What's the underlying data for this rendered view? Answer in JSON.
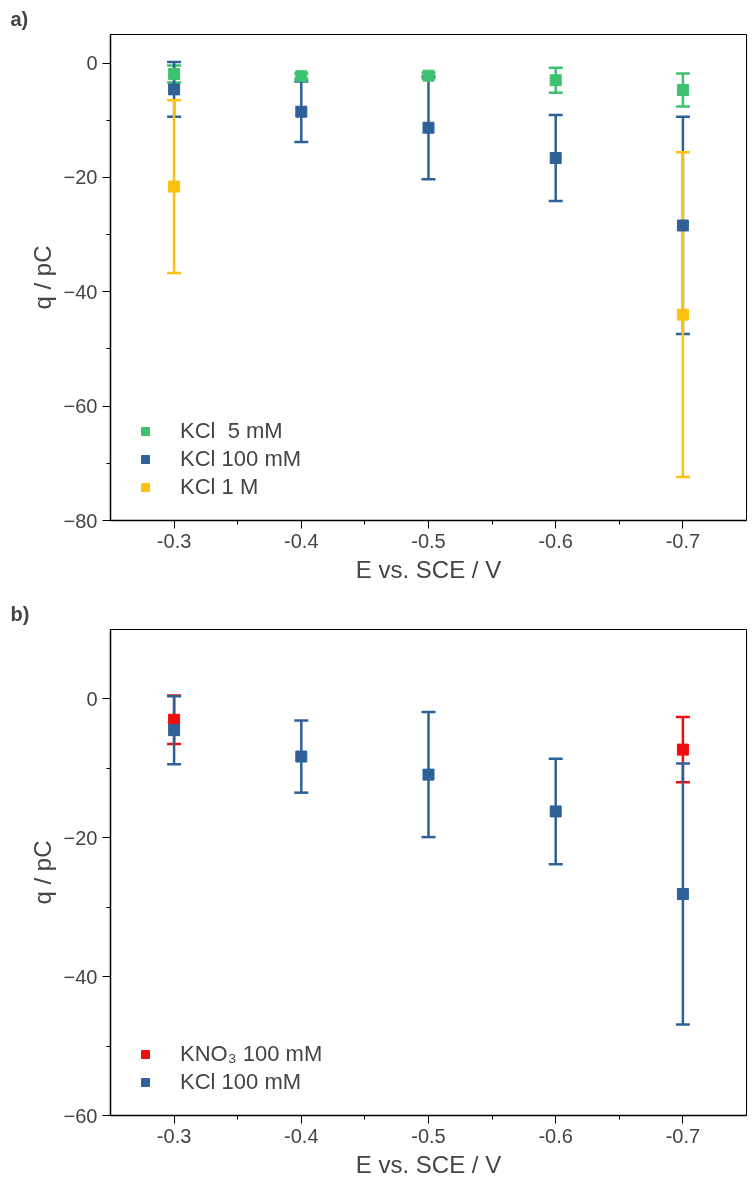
{
  "chart_data": [
    {
      "type": "scatter",
      "title": "a)",
      "xlabel": "E vs. SCE / V",
      "ylabel": "q / pC",
      "x": [
        -0.3,
        -0.4,
        -0.5,
        -0.6,
        -0.7
      ],
      "xlim": [
        -0.25,
        -0.75
      ],
      "xticks": [
        -0.3,
        -0.4,
        -0.5,
        -0.6,
        -0.7
      ],
      "ylim": [
        -80,
        5
      ],
      "yticks": [
        -80,
        -60,
        -40,
        -20,
        0
      ],
      "marker": "square",
      "legend": "bottom left",
      "grid": false,
      "series": [
        {
          "name": "KCl  5 mM",
          "color": "#3cc26e",
          "values": [
            -1.9,
            -2.3,
            -2.2,
            -3.0,
            -4.7
          ],
          "errors": [
            1.5,
            0.5,
            0.5,
            2.2,
            2.9
          ]
        },
        {
          "name": "KCl 100 mM",
          "color": "#2f6199",
          "values": [
            -4.6,
            -8.5,
            -11.3,
            -16.6,
            -28.4
          ],
          "errors": [
            4.8,
            5.3,
            9,
            7.5,
            19
          ]
        },
        {
          "name": "KCl 1 M",
          "color": "#fcc10f",
          "values": [
            -21.6,
            null,
            null,
            null,
            -44.0
          ],
          "errors": [
            15.1,
            null,
            null,
            null,
            28.4
          ]
        }
      ]
    },
    {
      "type": "scatter",
      "title": "b)",
      "xlabel": "E vs. SCE / V",
      "ylabel": "q / pC",
      "x": [
        -0.3,
        -0.4,
        -0.5,
        -0.6,
        -0.7
      ],
      "xlim": [
        -0.25,
        -0.75
      ],
      "xticks": [
        -0.3,
        -0.4,
        -0.5,
        -0.6,
        -0.7
      ],
      "ylim": [
        -60,
        10
      ],
      "yticks": [
        -60,
        -40,
        -20,
        0
      ],
      "marker": "square",
      "legend": "bottom left",
      "grid": false,
      "series": [
        {
          "name": "KNO₃ 100 mM",
          "color": "#f00d0d",
          "values": [
            -3.0,
            null,
            null,
            null,
            -7.3
          ],
          "errors": [
            3.5,
            null,
            null,
            null,
            4.7
          ]
        },
        {
          "name": "KCl 100 mM",
          "color": "#2f6199",
          "values": [
            -4.5,
            -8.3,
            -10.9,
            -16.2,
            -28.1
          ],
          "errors": [
            4.9,
            5.2,
            9,
            7.6,
            18.8
          ]
        }
      ]
    }
  ]
}
